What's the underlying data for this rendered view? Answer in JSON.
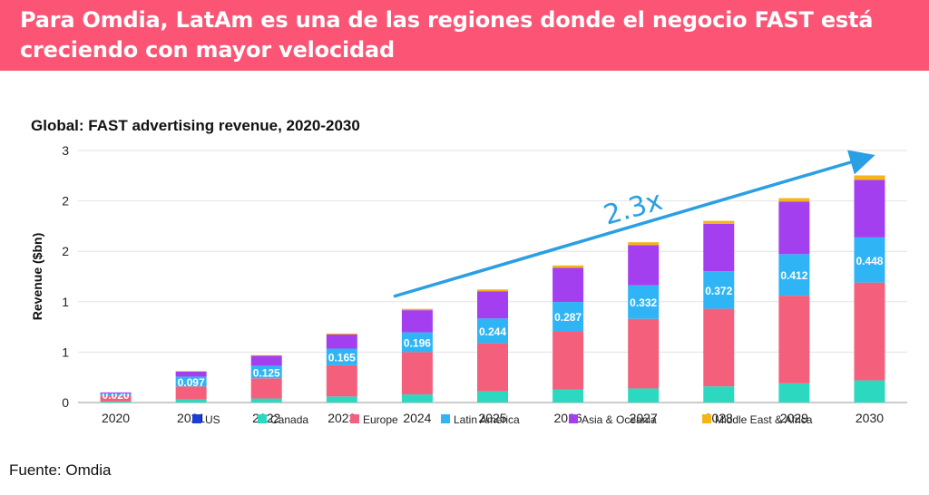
{
  "banner": {
    "title": "Para Omdia, LatAm es una de las regiones donde el negocio FAST está creciendo con mayor velocidad",
    "background": "#fb5474"
  },
  "source": "Fuente: Omdia",
  "chart_data": {
    "type": "bar",
    "stacked": true,
    "title": "Global: FAST advertising revenue, 2020-2030",
    "xlabel": "",
    "ylabel": "Revenue ($bn)",
    "ylim": [
      0,
      2.5
    ],
    "y_tick_labels": [
      "0",
      "1",
      "1",
      "2",
      "2",
      "3"
    ],
    "grid": true,
    "legend_position": "bottom",
    "categories": [
      "2020",
      "2021",
      "2022",
      "2023",
      "2024",
      "2025",
      "2026",
      "2027",
      "2028",
      "2029",
      "2030"
    ],
    "series": [
      {
        "name": "US",
        "color": "#1a3fd6",
        "values": [
          0,
          0,
          0,
          0,
          0,
          0,
          0,
          0,
          0,
          0,
          0
        ]
      },
      {
        "name": "Canada",
        "color": "#2dd8c0",
        "values": [
          0.01,
          0.03,
          0.04,
          0.06,
          0.08,
          0.11,
          0.13,
          0.14,
          0.16,
          0.19,
          0.22
        ]
      },
      {
        "name": "Europe",
        "color": "#f4607c",
        "values": [
          0.06,
          0.13,
          0.2,
          0.31,
          0.42,
          0.48,
          0.58,
          0.69,
          0.77,
          0.87,
          0.97
        ]
      },
      {
        "name": "Latin America",
        "color": "#2fb5f5",
        "values": [
          0.02,
          0.097,
          0.125,
          0.165,
          0.196,
          0.244,
          0.287,
          0.332,
          0.372,
          0.412,
          0.448
        ]
      },
      {
        "name": "Asia & Oceania",
        "color": "#a43ff0",
        "values": [
          0.01,
          0.05,
          0.1,
          0.14,
          0.22,
          0.27,
          0.34,
          0.4,
          0.47,
          0.52,
          0.57
        ]
      },
      {
        "name": "Middle East & Africa",
        "color": "#f5b417",
        "values": [
          0,
          0.005,
          0.005,
          0.01,
          0.013,
          0.018,
          0.023,
          0.028,
          0.03,
          0.035,
          0.045
        ]
      }
    ],
    "data_labels": {
      "series": "Latin America",
      "values": [
        "0.020",
        "0.097",
        "0.125",
        "0.165",
        "0.196",
        "0.244",
        "0.287",
        "0.332",
        "0.372",
        "0.412",
        "0.448"
      ]
    },
    "annotation": {
      "text": "2.3x",
      "color": "#2b9fe3"
    }
  }
}
